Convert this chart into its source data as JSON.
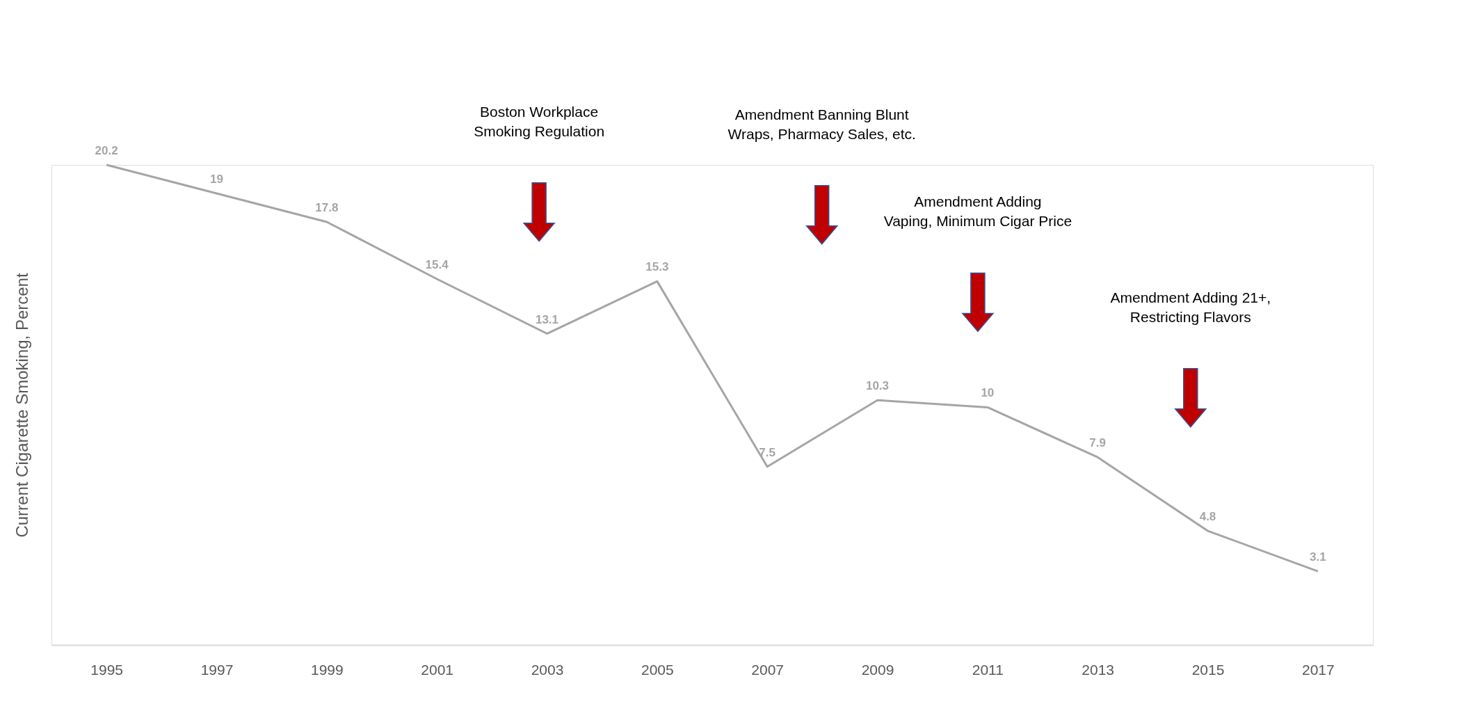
{
  "chart_data": {
    "type": "line",
    "ylabel": "Current Cigarette Smoking, Percent",
    "x": [
      1995,
      1997,
      1999,
      2001,
      2003,
      2005,
      2007,
      2009,
      2011,
      2013,
      2015,
      2017
    ],
    "series": [
      {
        "color": "#a5a5a5",
        "values": [
          20.2,
          19,
          17.8,
          15.4,
          13.1,
          15.3,
          7.5,
          10.3,
          10,
          7.9,
          4.8,
          3.1
        ]
      }
    ],
    "xlim": [
      1994,
      2018
    ],
    "xticks": [
      1995,
      1997,
      1999,
      2001,
      2003,
      2005,
      2007,
      2009,
      2011,
      2013,
      2015,
      2017
    ],
    "data_labels": true,
    "grid": false,
    "marker": "none",
    "line_style": "solid",
    "annotations": [
      "Boston Workplace\nSmoking Regulation",
      "Amendment Banning Blunt\nWraps, Pharmacy Sales, etc.",
      "Amendment Adding\nVaping, Minimum Cigar Price",
      "Amendment Adding  21+,\nRestricting Flavors"
    ]
  }
}
